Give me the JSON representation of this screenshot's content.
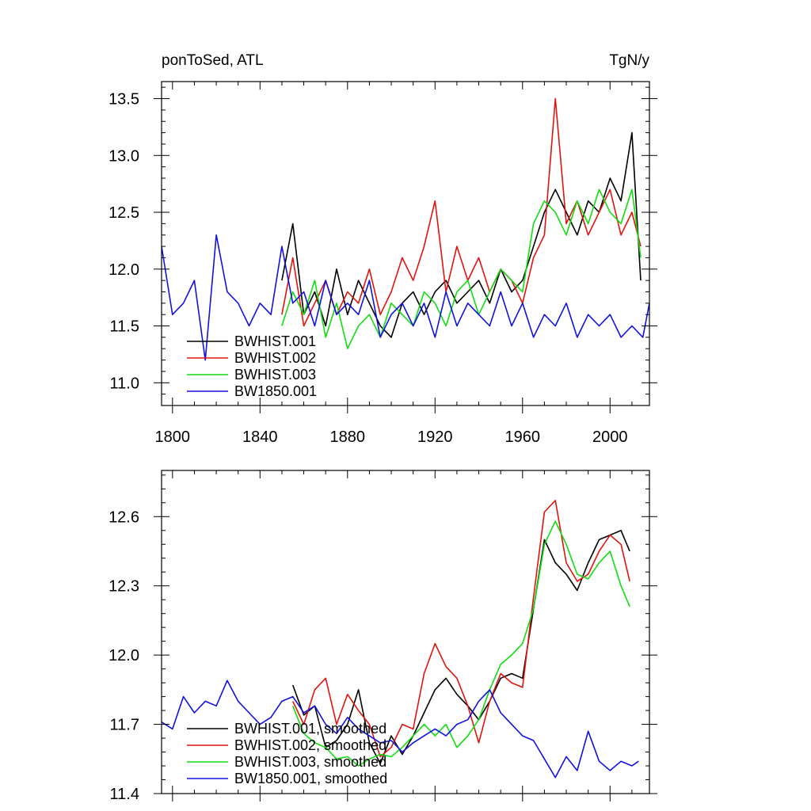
{
  "colors": {
    "BWHIST.001": "#000000",
    "BWHIST.002": "#e0140e",
    "BWHIST.003": "#11dd11",
    "BW1850.001": "#1212dd"
  },
  "chart_data": [
    {
      "type": "line",
      "title": "ponToSed, ATL",
      "units": "TgN/y",
      "xlim": [
        1795,
        2018
      ],
      "ylim": [
        10.8,
        13.65
      ],
      "xticks": [
        1800,
        1840,
        1880,
        1920,
        1960,
        2000
      ],
      "yticks": [
        11.0,
        11.5,
        12.0,
        12.5,
        13.0,
        13.5
      ],
      "ytick_labels": [
        "11.0",
        "11.5",
        "12.0",
        "12.5",
        "13.0",
        "13.5"
      ],
      "legend_position": "bottom-left",
      "series": [
        {
          "name": "BWHIST.001",
          "key": "BWHIST.001",
          "x": [
            1850,
            1855,
            1860,
            1865,
            1870,
            1875,
            1880,
            1885,
            1890,
            1895,
            1900,
            1905,
            1910,
            1915,
            1920,
            1925,
            1930,
            1935,
            1940,
            1945,
            1950,
            1955,
            1960,
            1965,
            1970,
            1975,
            1980,
            1985,
            1990,
            1995,
            2000,
            2005,
            2010,
            2014
          ],
          "values": [
            11.9,
            12.4,
            11.6,
            11.8,
            11.5,
            12.0,
            11.6,
            11.9,
            11.7,
            11.5,
            11.4,
            11.7,
            11.8,
            11.6,
            11.8,
            11.9,
            11.7,
            11.8,
            11.9,
            11.7,
            12.0,
            11.8,
            11.9,
            12.2,
            12.5,
            12.7,
            12.5,
            12.3,
            12.6,
            12.5,
            12.8,
            12.6,
            13.2,
            11.9
          ]
        },
        {
          "name": "BWHIST.002",
          "key": "BWHIST.002",
          "x": [
            1850,
            1855,
            1860,
            1865,
            1870,
            1875,
            1880,
            1885,
            1890,
            1895,
            1900,
            1905,
            1910,
            1915,
            1920,
            1925,
            1930,
            1935,
            1940,
            1945,
            1950,
            1955,
            1960,
            1965,
            1970,
            1975,
            1980,
            1985,
            1990,
            1995,
            2000,
            2005,
            2010,
            2014
          ],
          "values": [
            11.6,
            12.1,
            11.5,
            11.7,
            11.9,
            11.6,
            11.8,
            11.7,
            12.0,
            11.6,
            11.8,
            12.1,
            11.9,
            12.2,
            12.6,
            11.8,
            12.2,
            11.9,
            12.1,
            11.8,
            12.0,
            11.9,
            11.7,
            12.1,
            12.3,
            13.5,
            12.4,
            12.6,
            12.3,
            12.5,
            12.7,
            12.3,
            12.5,
            12.2
          ]
        },
        {
          "name": "BWHIST.003",
          "key": "BWHIST.003",
          "x": [
            1850,
            1855,
            1860,
            1865,
            1870,
            1875,
            1880,
            1885,
            1890,
            1895,
            1900,
            1905,
            1910,
            1915,
            1920,
            1925,
            1930,
            1935,
            1940,
            1945,
            1950,
            1955,
            1960,
            1965,
            1970,
            1975,
            1980,
            1985,
            1990,
            1995,
            2000,
            2005,
            2010,
            2014
          ],
          "values": [
            11.5,
            11.8,
            11.6,
            11.9,
            11.4,
            11.7,
            11.3,
            11.5,
            11.6,
            11.4,
            11.7,
            11.6,
            11.5,
            11.8,
            11.7,
            11.5,
            11.8,
            11.9,
            11.6,
            11.8,
            12.0,
            11.9,
            11.8,
            12.4,
            12.6,
            12.5,
            12.3,
            12.6,
            12.4,
            12.7,
            12.5,
            12.4,
            12.7,
            12.1
          ]
        },
        {
          "name": "BW1850.001",
          "key": "BW1850.001",
          "x": [
            1795,
            1800,
            1805,
            1810,
            1815,
            1820,
            1825,
            1830,
            1835,
            1840,
            1845,
            1850,
            1855,
            1860,
            1865,
            1870,
            1875,
            1880,
            1885,
            1890,
            1895,
            1900,
            1905,
            1910,
            1915,
            1920,
            1925,
            1930,
            1935,
            1940,
            1945,
            1950,
            1955,
            1960,
            1965,
            1970,
            1975,
            1980,
            1985,
            1990,
            1995,
            2000,
            2005,
            2010,
            2015,
            2018
          ],
          "values": [
            12.2,
            11.6,
            11.7,
            11.9,
            11.2,
            12.3,
            11.8,
            11.7,
            11.5,
            11.7,
            11.6,
            12.2,
            11.7,
            11.8,
            11.5,
            11.9,
            11.6,
            11.7,
            11.6,
            11.9,
            11.4,
            11.6,
            11.7,
            11.5,
            11.7,
            11.4,
            11.8,
            11.5,
            11.7,
            11.6,
            11.5,
            11.8,
            11.5,
            11.7,
            11.4,
            11.6,
            11.5,
            11.7,
            11.4,
            11.6,
            11.5,
            11.6,
            11.4,
            11.5,
            11.4,
            11.7
          ]
        }
      ]
    },
    {
      "type": "line",
      "xlim": [
        1795,
        2018
      ],
      "ylim": [
        11.4,
        12.8
      ],
      "xticks": [
        1800,
        1840,
        1880,
        1920,
        1960,
        2000
      ],
      "yticks": [
        11.4,
        11.7,
        12.0,
        12.3,
        12.6
      ],
      "ytick_labels": [
        "11.4",
        "11.7",
        "12.0",
        "12.3",
        "12.6"
      ],
      "legend_position": "bottom-left",
      "series": [
        {
          "name": "BWHIST.001, smoothed",
          "key": "BWHIST.001",
          "x": [
            1855,
            1860,
            1865,
            1870,
            1875,
            1880,
            1885,
            1890,
            1895,
            1900,
            1905,
            1910,
            1915,
            1920,
            1925,
            1930,
            1935,
            1940,
            1945,
            1950,
            1955,
            1960,
            1965,
            1970,
            1975,
            1980,
            1985,
            1990,
            1995,
            2000,
            2005,
            2009
          ],
          "values": [
            11.87,
            11.74,
            11.78,
            11.6,
            11.63,
            11.7,
            11.85,
            11.62,
            11.53,
            11.65,
            11.57,
            11.65,
            11.75,
            11.85,
            11.9,
            11.83,
            11.78,
            11.72,
            11.8,
            11.9,
            11.92,
            11.9,
            12.2,
            12.5,
            12.4,
            12.35,
            12.28,
            12.4,
            12.5,
            12.52,
            12.54,
            12.45
          ]
        },
        {
          "name": "BWHIST.002, smoothed",
          "key": "BWHIST.002",
          "x": [
            1855,
            1860,
            1865,
            1870,
            1875,
            1880,
            1885,
            1890,
            1895,
            1900,
            1905,
            1910,
            1915,
            1920,
            1925,
            1930,
            1935,
            1940,
            1945,
            1950,
            1955,
            1960,
            1965,
            1970,
            1975,
            1980,
            1985,
            1990,
            1995,
            2000,
            2005,
            2009
          ],
          "values": [
            11.8,
            11.7,
            11.85,
            11.9,
            11.7,
            11.83,
            11.76,
            11.7,
            11.56,
            11.6,
            11.7,
            11.68,
            11.92,
            12.05,
            11.95,
            11.9,
            11.78,
            11.62,
            11.8,
            11.92,
            11.88,
            11.86,
            12.25,
            12.62,
            12.67,
            12.4,
            12.32,
            12.35,
            12.45,
            12.52,
            12.48,
            12.32
          ]
        },
        {
          "name": "BWHIST.003, smoothed",
          "key": "BWHIST.003",
          "x": [
            1855,
            1860,
            1865,
            1870,
            1875,
            1880,
            1885,
            1890,
            1895,
            1900,
            1905,
            1910,
            1915,
            1920,
            1925,
            1930,
            1935,
            1940,
            1945,
            1950,
            1955,
            1960,
            1965,
            1970,
            1975,
            1980,
            1985,
            1990,
            1995,
            2000,
            2005,
            2009
          ],
          "values": [
            11.78,
            11.66,
            11.62,
            11.6,
            11.55,
            11.56,
            11.52,
            11.55,
            11.57,
            11.56,
            11.6,
            11.65,
            11.7,
            11.65,
            11.7,
            11.6,
            11.65,
            11.72,
            11.85,
            11.96,
            12.0,
            12.05,
            12.2,
            12.48,
            12.58,
            12.48,
            12.35,
            12.33,
            12.4,
            12.45,
            12.3,
            12.21
          ]
        },
        {
          "name": "BW1850.001, smoothed",
          "key": "BW1850.001",
          "x": [
            1795,
            1800,
            1805,
            1810,
            1815,
            1820,
            1825,
            1830,
            1835,
            1840,
            1845,
            1850,
            1855,
            1860,
            1865,
            1870,
            1875,
            1880,
            1885,
            1890,
            1895,
            1900,
            1905,
            1910,
            1915,
            1920,
            1925,
            1930,
            1935,
            1940,
            1945,
            1950,
            1955,
            1960,
            1965,
            1970,
            1975,
            1980,
            1985,
            1990,
            1995,
            2000,
            2005,
            2010,
            2013
          ],
          "values": [
            11.71,
            11.68,
            11.82,
            11.75,
            11.8,
            11.78,
            11.89,
            11.8,
            11.75,
            11.7,
            11.73,
            11.8,
            11.82,
            11.75,
            11.78,
            11.7,
            11.66,
            11.73,
            11.68,
            11.65,
            11.62,
            11.63,
            11.58,
            11.62,
            11.65,
            11.68,
            11.65,
            11.7,
            11.72,
            11.8,
            11.85,
            11.75,
            11.7,
            11.65,
            11.63,
            11.55,
            11.47,
            11.56,
            11.5,
            11.67,
            11.54,
            11.5,
            11.54,
            11.52,
            11.54
          ]
        }
      ]
    }
  ]
}
